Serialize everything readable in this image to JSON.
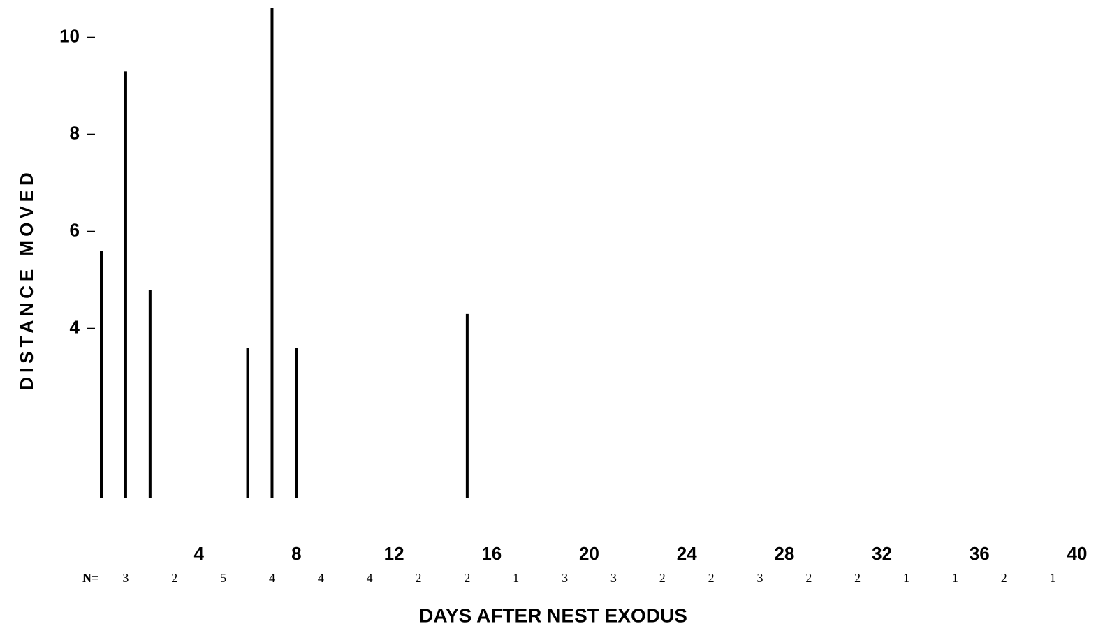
{
  "chart_data": {
    "type": "bar",
    "y_label": "DISTANCE MOVED",
    "x_label": "DAYS AFTER NEST EXODUS",
    "x": [
      0,
      1,
      2,
      6,
      7,
      8,
      15
    ],
    "values": [
      5.6,
      9.3,
      4.8,
      3.6,
      10.6,
      3.6,
      4.3
    ],
    "color": "#000000",
    "xlim": [
      0,
      40
    ],
    "xticks": [
      4,
      8,
      12,
      16,
      20,
      24,
      28,
      32,
      36,
      40
    ],
    "ylim": [
      0.5,
      10.6
    ],
    "yticks": [
      4,
      6,
      8,
      10
    ],
    "n_label": "N=",
    "n_values": [
      3,
      2,
      5,
      4,
      4,
      4,
      2,
      2,
      1,
      3,
      3,
      2,
      2,
      3,
      2,
      2,
      1,
      1,
      2,
      1
    ]
  }
}
